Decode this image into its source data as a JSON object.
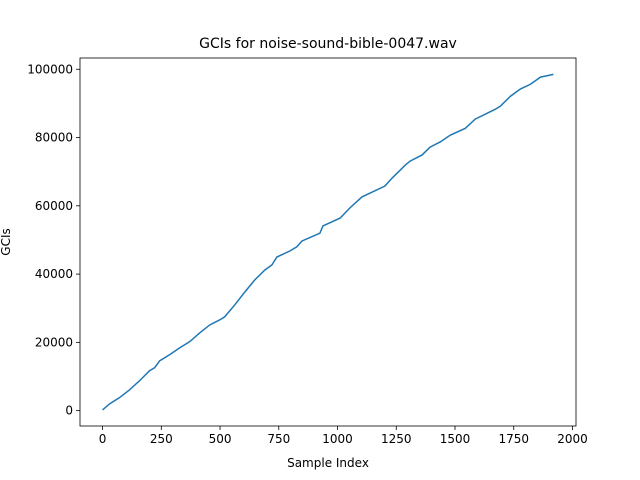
{
  "chart_data": {
    "type": "line",
    "title": "GCIs for noise-sound-bible-0047.wav",
    "xlabel": "Sample Index",
    "ylabel": "GCIs",
    "x": [
      0,
      30,
      72,
      115,
      158,
      200,
      222,
      243,
      286,
      328,
      371,
      414,
      456,
      499,
      520,
      563,
      606,
      648,
      691,
      721,
      742,
      798,
      827,
      849,
      925,
      938,
      1011,
      1053,
      1104,
      1202,
      1232,
      1288,
      1309,
      1360,
      1394,
      1437,
      1480,
      1544,
      1586,
      1672,
      1693,
      1736,
      1778,
      1821,
      1864,
      1919
    ],
    "series": [
      {
        "name": "GCIs",
        "color": "#1f77b4",
        "values": [
          200,
          2000,
          3800,
          6100,
          8800,
          11700,
          12600,
          14600,
          16400,
          18400,
          20200,
          22800,
          25100,
          26600,
          27500,
          31000,
          34800,
          38300,
          41200,
          42700,
          45000,
          46800,
          48000,
          49700,
          52000,
          54100,
          56400,
          59400,
          62600,
          65800,
          68100,
          71900,
          73100,
          74900,
          77200,
          78700,
          80700,
          82700,
          85400,
          88300,
          89200,
          92100,
          94200,
          95600,
          97700,
          98500
        ]
      }
    ],
    "xlim": [
      -96,
      2015
    ],
    "ylim": [
      -4500,
      103300
    ],
    "xticks": [
      0,
      250,
      500,
      750,
      1000,
      1250,
      1500,
      1750,
      2000
    ],
    "yticks": [
      0,
      20000,
      40000,
      60000,
      80000,
      100000
    ]
  }
}
